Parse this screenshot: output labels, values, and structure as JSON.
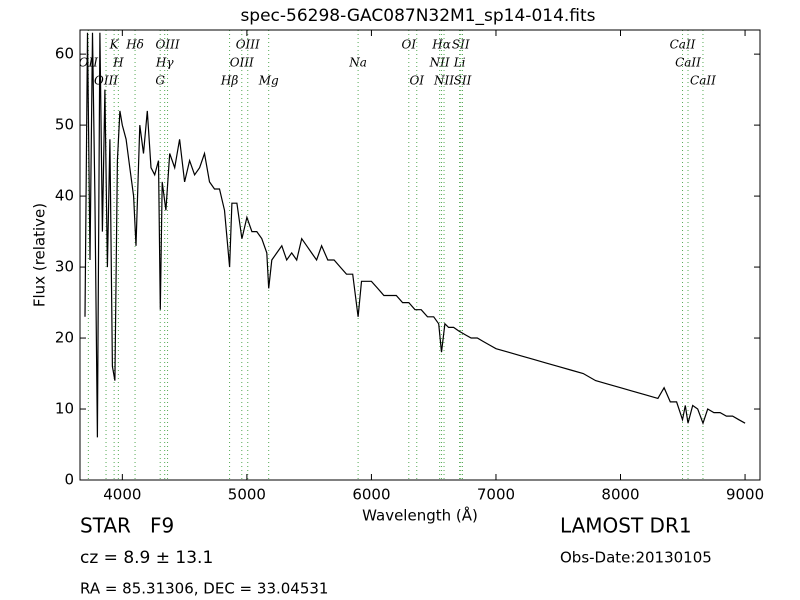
{
  "chart_data": {
    "type": "line",
    "title": "spec-56298-GAC087N32M1_sp14-014.fits",
    "x_label": "Wavelength (Å)",
    "y_label": "Flux (relative)",
    "xlim": [
      3660,
      9120
    ],
    "ylim": [
      0,
      63.4
    ],
    "xticks": [
      4000,
      5000,
      6000,
      7000,
      8000,
      9000
    ],
    "yticks": [
      0,
      10,
      20,
      30,
      40,
      50,
      60
    ],
    "color": "#000000",
    "line_color": "#55aa55",
    "x": [
      3700,
      3720,
      3740,
      3760,
      3780,
      3800,
      3820,
      3840,
      3860,
      3880,
      3900,
      3920,
      3940,
      3960,
      3980,
      4000,
      4030,
      4060,
      4090,
      4110,
      4140,
      4170,
      4200,
      4230,
      4260,
      4290,
      4305,
      4320,
      4350,
      4380,
      4420,
      4460,
      4500,
      4540,
      4580,
      4620,
      4660,
      4700,
      4740,
      4780,
      4820,
      4861,
      4880,
      4920,
      4960,
      5000,
      5040,
      5080,
      5120,
      5160,
      5175,
      5200,
      5240,
      5280,
      5320,
      5360,
      5400,
      5440,
      5480,
      5520,
      5560,
      5600,
      5650,
      5700,
      5750,
      5800,
      5850,
      5893,
      5920,
      5960,
      6000,
      6050,
      6100,
      6150,
      6200,
      6250,
      6300,
      6350,
      6400,
      6450,
      6500,
      6540,
      6563,
      6590,
      6620,
      6660,
      6700,
      6750,
      6800,
      6850,
      6900,
      6950,
      7000,
      7100,
      7200,
      7300,
      7400,
      7500,
      7600,
      7700,
      7800,
      7900,
      8000,
      8100,
      8200,
      8300,
      8350,
      8400,
      8450,
      8498,
      8520,
      8542,
      8580,
      8620,
      8662,
      8700,
      8750,
      8800,
      8850,
      8900,
      8950,
      9000
    ],
    "values": [
      23,
      63,
      31,
      63,
      40,
      6,
      63,
      35,
      55,
      30,
      48,
      16,
      14,
      45,
      52,
      50,
      48,
      44,
      40,
      33,
      50,
      46,
      52,
      44,
      43,
      45,
      24,
      42,
      38,
      46,
      44,
      48,
      42,
      45,
      43,
      44,
      46,
      42,
      41,
      41,
      38,
      30,
      39,
      39,
      34,
      37,
      35,
      35,
      34,
      32,
      27,
      31,
      32,
      33,
      31,
      32,
      31,
      34,
      33,
      32,
      31,
      33,
      31,
      31,
      30,
      29,
      29,
      23,
      28,
      28,
      28,
      27,
      26,
      26,
      26,
      25,
      25,
      24,
      24,
      23,
      23,
      22,
      18,
      22,
      21.5,
      21.5,
      21,
      20.5,
      20,
      20,
      19.5,
      19,
      18.5,
      18,
      17.5,
      17,
      16.5,
      16,
      15.5,
      15,
      14,
      13.5,
      13,
      12.5,
      12,
      11.5,
      13,
      11,
      11,
      8.5,
      10.5,
      8,
      10.5,
      10,
      8,
      10,
      9.5,
      9.5,
      9,
      9,
      8.5,
      8
    ],
    "lines": [
      {
        "label": "OII",
        "x": 3727
      },
      {
        "label": "OIII",
        "x": 3869
      },
      {
        "label": "K",
        "x": 3934
      },
      {
        "label": "H",
        "x": 3968
      },
      {
        "label": "Hδ",
        "x": 4102
      },
      {
        "label": "G",
        "x": 4304
      },
      {
        "label": "Hγ",
        "x": 4340
      },
      {
        "label": "OIII",
        "x": 4363
      },
      {
        "label": "Hβ",
        "x": 4861
      },
      {
        "label": "OIII",
        "x": 4959
      },
      {
        "label": "OIII",
        "x": 5007
      },
      {
        "label": "Mg",
        "x": 5175
      },
      {
        "label": "Na",
        "x": 5893
      },
      {
        "label": "OI",
        "x": 6300
      },
      {
        "label": "OI",
        "x": 6364
      },
      {
        "label": "NII",
        "x": 6548
      },
      {
        "label": "Hα",
        "x": 6563
      },
      {
        "label": "NII",
        "x": 6583
      },
      {
        "label": "Li",
        "x": 6708
      },
      {
        "label": "SII",
        "x": 6717
      },
      {
        "label": "SII",
        "x": 6731
      },
      {
        "label": "CaII",
        "x": 8498
      },
      {
        "label": "CaII",
        "x": 8542
      },
      {
        "label": "CaII",
        "x": 8662
      }
    ],
    "annotations": [
      "STAR   F9",
      "cz = 8.9 ± 13.1",
      "RA = 85.31306, DEC = 33.04531",
      "LAMOST DR1",
      "Obs-Date:20130105"
    ]
  }
}
